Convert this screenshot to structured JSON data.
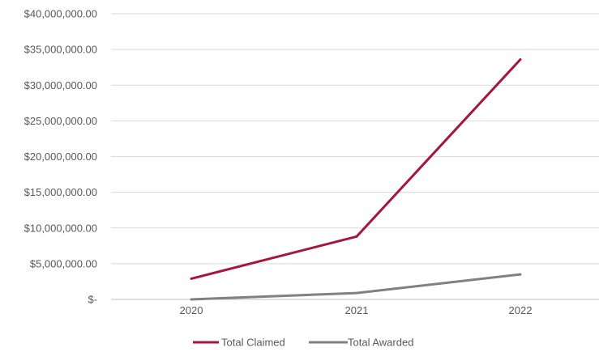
{
  "chart_data": {
    "type": "line",
    "categories": [
      "2020",
      "2021",
      "2022"
    ],
    "series": [
      {
        "name": "Total Claimed",
        "values": [
          2900000,
          8800000,
          33600000
        ],
        "color": "#a6163a"
      },
      {
        "name": "Total Awarded",
        "values": [
          0,
          900000,
          3500000
        ],
        "color": "#808080"
      }
    ],
    "ylim": [
      0,
      40000000
    ],
    "yticks": [
      0,
      5000000,
      10000000,
      15000000,
      20000000,
      25000000,
      30000000,
      35000000,
      40000000
    ],
    "ytick_labels": [
      "$-",
      "$5,000,000.00",
      "$10,000,000.00",
      "$15,000,000.00",
      "$20,000,000.00",
      "$25,000,000.00",
      "$30,000,000.00",
      "$35,000,000.00",
      "$40,000,000.00"
    ],
    "grid": true,
    "legend_position": "bottom-center"
  },
  "colors": {
    "grid": "#d9d9d9",
    "axis": "#bfbfbf",
    "text": "#595959"
  }
}
